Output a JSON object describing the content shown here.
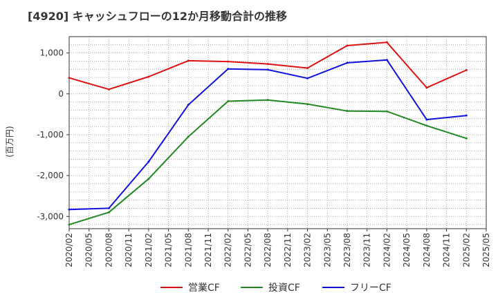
{
  "chart_data": {
    "type": "line",
    "title": "[4920]  キャッシュフローの12か月移動合計の推移",
    "ylabel": "(百万円)",
    "xlabel": "",
    "ylim": [
      -3300,
      1400
    ],
    "yticks": [
      1000,
      0,
      -1000,
      -2000,
      -3000
    ],
    "ytick_labels": [
      "1,000",
      "0",
      "-1,000",
      "-2,000",
      "-3,000"
    ],
    "grid": true,
    "categories": [
      "2020/02",
      "2020/05",
      "2020/08",
      "2020/11",
      "2021/02",
      "2021/05",
      "2021/08",
      "2021/11",
      "2022/02",
      "2022/05",
      "2022/08",
      "2022/11",
      "2023/02",
      "2023/05",
      "2023/08",
      "2023/11",
      "2024/02",
      "2024/05",
      "2024/08",
      "2024/11",
      "2025/02",
      "2025/05"
    ],
    "series": [
      {
        "name": "営業CF",
        "color": "#dd1111",
        "values": [
          390,
          null,
          110,
          null,
          420,
          null,
          810,
          null,
          790,
          null,
          730,
          null,
          630,
          null,
          1180,
          null,
          1260,
          null,
          150,
          null,
          580,
          null
        ]
      },
      {
        "name": "投資CF",
        "color": "#228822",
        "values": [
          -3200,
          null,
          -2900,
          null,
          -2080,
          null,
          -1050,
          null,
          -180,
          null,
          -150,
          null,
          -250,
          null,
          -420,
          null,
          -430,
          null,
          -780,
          null,
          -1090,
          null
        ]
      },
      {
        "name": "フリーCF",
        "color": "#1111dd",
        "values": [
          -2830,
          null,
          -2800,
          null,
          -1660,
          null,
          -270,
          null,
          610,
          null,
          590,
          null,
          380,
          null,
          760,
          null,
          830,
          null,
          -630,
          null,
          -530,
          null
        ]
      }
    ],
    "legend_position": "bottom"
  }
}
